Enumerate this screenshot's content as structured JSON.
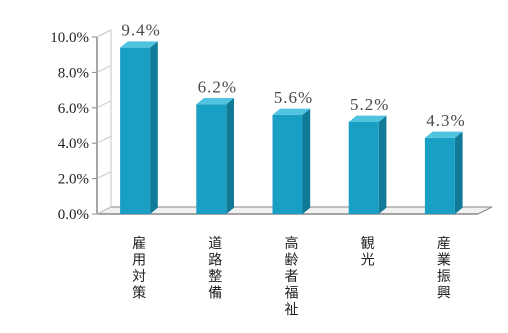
{
  "chart_data": {
    "type": "bar",
    "categories": [
      "雇用対策",
      "道路整備",
      "高齢者福祉",
      "観光",
      "産業振興"
    ],
    "values": [
      9.4,
      6.2,
      5.6,
      5.2,
      4.3
    ],
    "data_labels": [
      "9.4%",
      "6.2%",
      "5.6%",
      "5.2%",
      "4.3%"
    ],
    "y_ticks": [
      "0.0%",
      "2.0%",
      "4.0%",
      "6.0%",
      "8.0%",
      "10.0%"
    ],
    "ylim": [
      0,
      10
    ],
    "title": "",
    "xlabel": "",
    "ylabel": "",
    "grid": false,
    "legend": "none",
    "colors": {
      "bar_front": "#1a9fc4",
      "bar_side": "#117a98",
      "bar_top": "#4fc3e0",
      "axis": "#888888"
    }
  }
}
